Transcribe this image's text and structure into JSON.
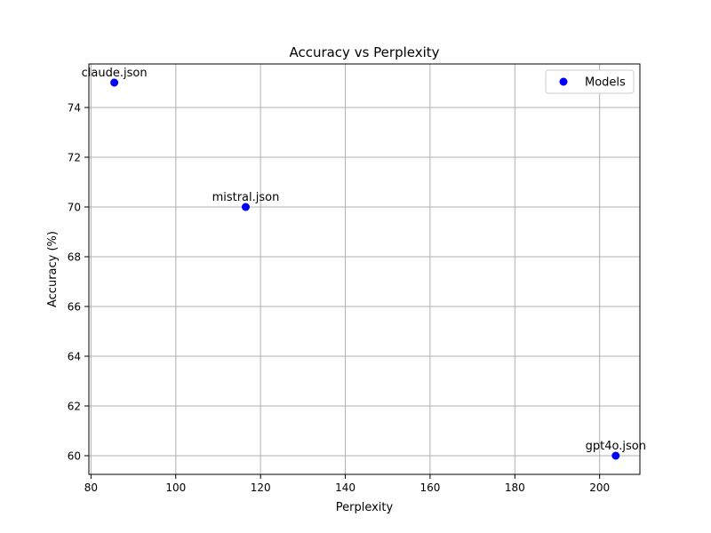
{
  "chart_data": {
    "type": "scatter",
    "title": "Accuracy vs Perplexity",
    "xlabel": "Perplexity",
    "ylabel": "Accuracy (%)",
    "xlim": [
      79.5,
      209.5
    ],
    "ylim": [
      59.25,
      75.75
    ],
    "xticks": [
      80,
      100,
      120,
      140,
      160,
      180,
      200
    ],
    "yticks": [
      60,
      62,
      64,
      66,
      68,
      70,
      72,
      74
    ],
    "grid": true,
    "legend": {
      "placement": "top-right",
      "entries": [
        "Models"
      ]
    },
    "series": [
      {
        "name": "Models",
        "color": "#0000ff",
        "points": [
          {
            "label": "claude.json",
            "x": 85.5,
            "y": 75
          },
          {
            "label": "mistral.json",
            "x": 116.5,
            "y": 70
          },
          {
            "label": "gpt4o.json",
            "x": 203.8,
            "y": 60
          }
        ]
      }
    ]
  }
}
